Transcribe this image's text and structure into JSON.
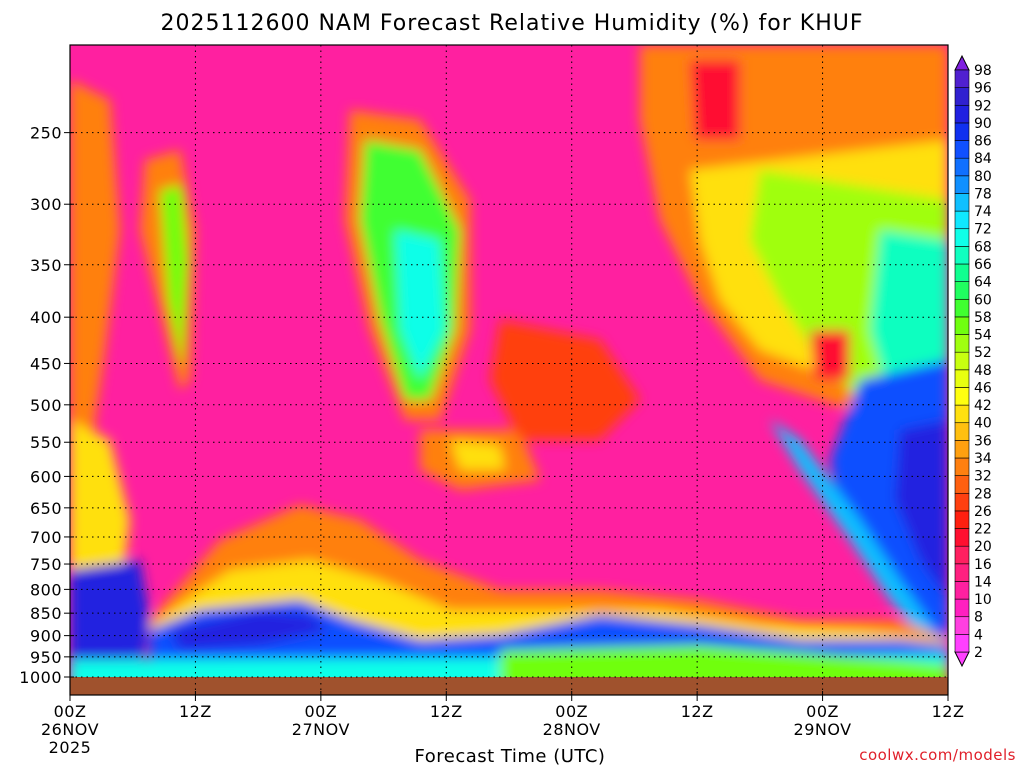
{
  "chart_data": {
    "type": "heatmap",
    "title": "2025112600 NAM Forecast Relative Humidity (%) for KHUF",
    "xlabel": "Forecast Time (UTC)",
    "ylabel": "",
    "credit": "coolwx.com/models",
    "x_ticks": [
      {
        "hours": 0,
        "label": "00Z",
        "sublabel": "26NOV",
        "year": "2025"
      },
      {
        "hours": 12,
        "label": "12Z",
        "sublabel": "",
        "year": ""
      },
      {
        "hours": 24,
        "label": "00Z",
        "sublabel": "27NOV",
        "year": ""
      },
      {
        "hours": 36,
        "label": "12Z",
        "sublabel": "",
        "year": ""
      },
      {
        "hours": 48,
        "label": "00Z",
        "sublabel": "28NOV",
        "year": ""
      },
      {
        "hours": 60,
        "label": "12Z",
        "sublabel": "",
        "year": ""
      },
      {
        "hours": 72,
        "label": "00Z",
        "sublabel": "29NOV",
        "year": ""
      },
      {
        "hours": 84,
        "label": "12Z",
        "sublabel": "",
        "year": ""
      }
    ],
    "xlim_hours": [
      0,
      84
    ],
    "y_ticks": [
      250,
      300,
      350,
      400,
      450,
      500,
      550,
      600,
      650,
      700,
      750,
      800,
      850,
      900,
      950,
      1000
    ],
    "ylim_hpa": [
      200,
      1000
    ],
    "y_scale": "log-pressure",
    "grid": true,
    "ground_pressure_hpa": 990,
    "colorbar": {
      "levels": [
        2,
        4,
        8,
        10,
        14,
        16,
        20,
        22,
        26,
        28,
        32,
        34,
        36,
        40,
        42,
        46,
        48,
        52,
        54,
        58,
        60,
        64,
        66,
        68,
        72,
        74,
        78,
        80,
        84,
        86,
        90,
        92,
        96,
        98
      ],
      "colors": [
        "#ff40ff",
        "#ff40e0",
        "#ff20c0",
        "#ff20a0",
        "#ff2080",
        "#ff2060",
        "#ff1030",
        "#ff2010",
        "#ff4010",
        "#ff6010",
        "#ff8010",
        "#ffa010",
        "#ffc010",
        "#ffe010",
        "#ffff10",
        "#e8ff10",
        "#c8ff10",
        "#a0ff10",
        "#70ff10",
        "#40ff30",
        "#20ff60",
        "#10ff90",
        "#10ffc0",
        "#10ffe8",
        "#10e8ff",
        "#10c0ff",
        "#1090ff",
        "#1070ff",
        "#1050ff",
        "#1030f0",
        "#2020e0",
        "#3020d0",
        "#5020d0",
        "#8020e0"
      ]
    },
    "features": [
      {
        "description": "dry pink mid/upper troposphere most of period",
        "rh": 5
      },
      {
        "description": "moist low level layer",
        "rh": 90
      },
      {
        "description": "mid-level moist plume near 27NOV 06Z",
        "rh": 65
      },
      {
        "description": "moist upper band near 26NOV 12Z",
        "rh": 60
      },
      {
        "description": "saturation after 29NOV 06Z",
        "rh": 90
      }
    ]
  }
}
